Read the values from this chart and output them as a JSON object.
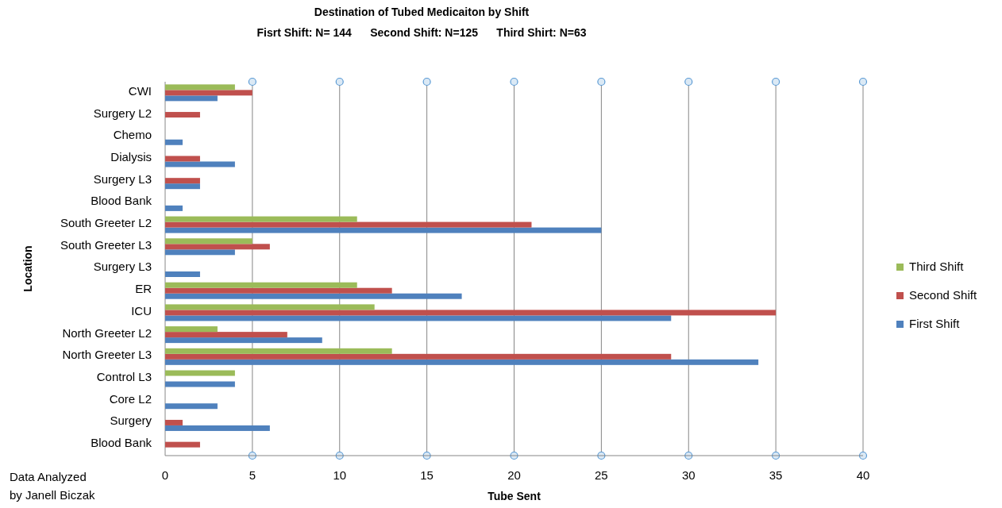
{
  "chart_data": {
    "type": "bar",
    "orientation": "horizontal",
    "title": "Destination of Tubed Medicaiton by Shift",
    "subtitle": "Fisrt Shift: N= 144      Second Shift: N=125      Third Shirt: N=63",
    "xlabel": "Tube Sent",
    "ylabel": "Location",
    "categories": [
      "CWI",
      "Surgery L2",
      "Chemo",
      "Dialysis",
      "Surgery L3",
      "Blood Bank",
      "South Greeter L2",
      "South Greeter L3",
      "Surgery L3",
      "ER",
      "ICU",
      "North Greeter L2",
      "North Greeter L3",
      "Control L3",
      "Core L2",
      "Surgery",
      "Blood Bank"
    ],
    "series": [
      {
        "name": "First Shift",
        "color": "#4f81bd",
        "values": [
          3,
          null,
          1,
          4,
          2,
          1,
          25,
          4,
          2,
          17,
          29,
          9,
          34,
          4,
          3,
          6,
          null
        ]
      },
      {
        "name": "Second Shift",
        "color": "#c0504d",
        "values": [
          5,
          2,
          null,
          2,
          2,
          null,
          21,
          6,
          null,
          13,
          35,
          7,
          29,
          null,
          null,
          1,
          2
        ]
      },
      {
        "name": "Third Shift",
        "color": "#9bbb59",
        "values": [
          4,
          null,
          null,
          null,
          null,
          null,
          11,
          5,
          null,
          11,
          12,
          3,
          13,
          4,
          null,
          null,
          null
        ]
      }
    ],
    "xlim": [
      0,
      40
    ],
    "xticks": [
      0,
      5,
      10,
      15,
      20,
      25,
      30,
      35,
      40
    ],
    "grid": "x",
    "legend": "right",
    "annotations": [
      "Data Analyzed by Janell Biczak"
    ]
  }
}
